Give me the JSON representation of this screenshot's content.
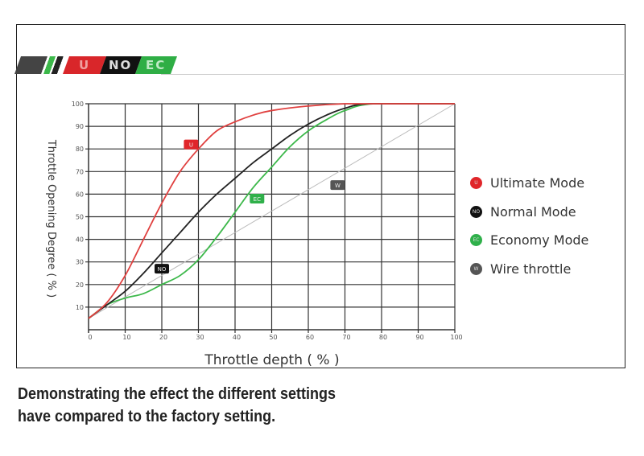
{
  "banner": {
    "segments": [
      {
        "text": "U",
        "color": "#d9262a",
        "text_color": "#f0a0a0"
      },
      {
        "text": "NO",
        "color": "#111111",
        "text_color": "#dddddd"
      },
      {
        "text": "EC",
        "color": "#2fae45",
        "text_color": "#bfeac5"
      }
    ]
  },
  "chart_data": {
    "type": "line",
    "xlabel": "Throttle depth ( % )",
    "ylabel": "Throttle Opening Degree ( % )",
    "xlim": [
      0,
      100
    ],
    "ylim": [
      0,
      100
    ],
    "x_ticks": [
      "0",
      "10",
      "20",
      "30",
      "40",
      "50",
      "60",
      "70",
      "80",
      "90",
      "100"
    ],
    "y_ticks": [
      "10",
      "20",
      "30",
      "40",
      "50",
      "60",
      "70",
      "80",
      "90",
      "100"
    ],
    "grid": true,
    "legend_position": "right",
    "series": [
      {
        "name": "Ultimate Mode",
        "badge": "U",
        "color": "#e0403f",
        "label_at": [
          28,
          82
        ],
        "points": [
          [
            0,
            5
          ],
          [
            5,
            12
          ],
          [
            10,
            24
          ],
          [
            15,
            40
          ],
          [
            20,
            56
          ],
          [
            25,
            70
          ],
          [
            30,
            80
          ],
          [
            35,
            88
          ],
          [
            40,
            92
          ],
          [
            45,
            95
          ],
          [
            50,
            97
          ],
          [
            60,
            99
          ],
          [
            70,
            100
          ],
          [
            80,
            100
          ],
          [
            100,
            100
          ]
        ]
      },
      {
        "name": "Normal Mode",
        "badge": "NO",
        "color": "#222222",
        "label_at": [
          20,
          27
        ],
        "points": [
          [
            0,
            5
          ],
          [
            5,
            11
          ],
          [
            10,
            17
          ],
          [
            15,
            25
          ],
          [
            20,
            34
          ],
          [
            25,
            43
          ],
          [
            30,
            52
          ],
          [
            35,
            60
          ],
          [
            40,
            67
          ],
          [
            45,
            74
          ],
          [
            50,
            80
          ],
          [
            55,
            86
          ],
          [
            60,
            91
          ],
          [
            65,
            95
          ],
          [
            70,
            98
          ],
          [
            77,
            100
          ],
          [
            100,
            100
          ]
        ]
      },
      {
        "name": "Economy Mode",
        "badge": "EC",
        "color": "#3cb84a",
        "label_at": [
          46,
          58
        ],
        "points": [
          [
            0,
            5
          ],
          [
            5,
            11
          ],
          [
            10,
            14
          ],
          [
            15,
            16
          ],
          [
            20,
            20
          ],
          [
            25,
            24
          ],
          [
            30,
            31
          ],
          [
            35,
            41
          ],
          [
            40,
            52
          ],
          [
            45,
            63
          ],
          [
            50,
            72
          ],
          [
            55,
            81
          ],
          [
            60,
            88
          ],
          [
            65,
            93
          ],
          [
            70,
            97
          ],
          [
            78,
            100
          ],
          [
            100,
            100
          ]
        ]
      },
      {
        "name": "Wire throttle",
        "badge": "W",
        "color": "#bbbbbb",
        "label_at": [
          68,
          64
        ],
        "points": [
          [
            0,
            5
          ],
          [
            100,
            100
          ]
        ]
      }
    ],
    "legend_colors": [
      "#e0262a",
      "#111111",
      "#2fb04a",
      "#555555"
    ]
  },
  "caption": {
    "line1": "Demonstrating the effect the different settings",
    "line2": "have compared to the factory setting."
  }
}
